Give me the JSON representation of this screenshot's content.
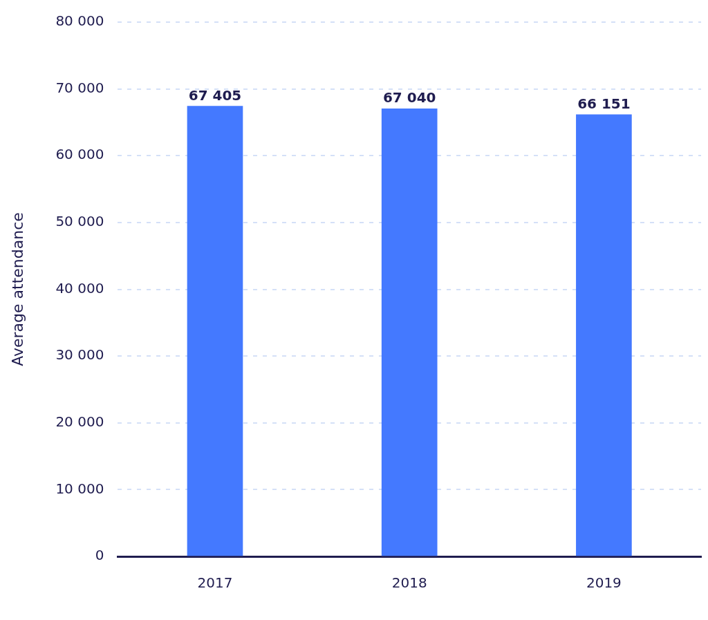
{
  "chart_data": {
    "type": "bar",
    "categories": [
      "2017",
      "2018",
      "2019"
    ],
    "values": [
      67405,
      67040,
      66151
    ],
    "value_labels": [
      "67 405",
      "67 040",
      "66 151"
    ],
    "color": "#4479ff",
    "y_label": "Average attendance",
    "ylim": [
      0,
      80000
    ],
    "yticks": [
      0,
      {
        "value": 10000,
        "label": "10 000"
      },
      {
        "value": 20000,
        "label": "20 000"
      },
      {
        "value": 30000,
        "label": "30 000"
      },
      {
        "value": 40000,
        "label": "40 000"
      },
      {
        "value": 50000,
        "label": "50 000"
      },
      {
        "value": 60000,
        "label": "60 000"
      },
      {
        "value": 70000,
        "label": "70 000"
      },
      {
        "value": 80000,
        "label": "80 000"
      }
    ],
    "grid": true,
    "data_labels": true
  }
}
